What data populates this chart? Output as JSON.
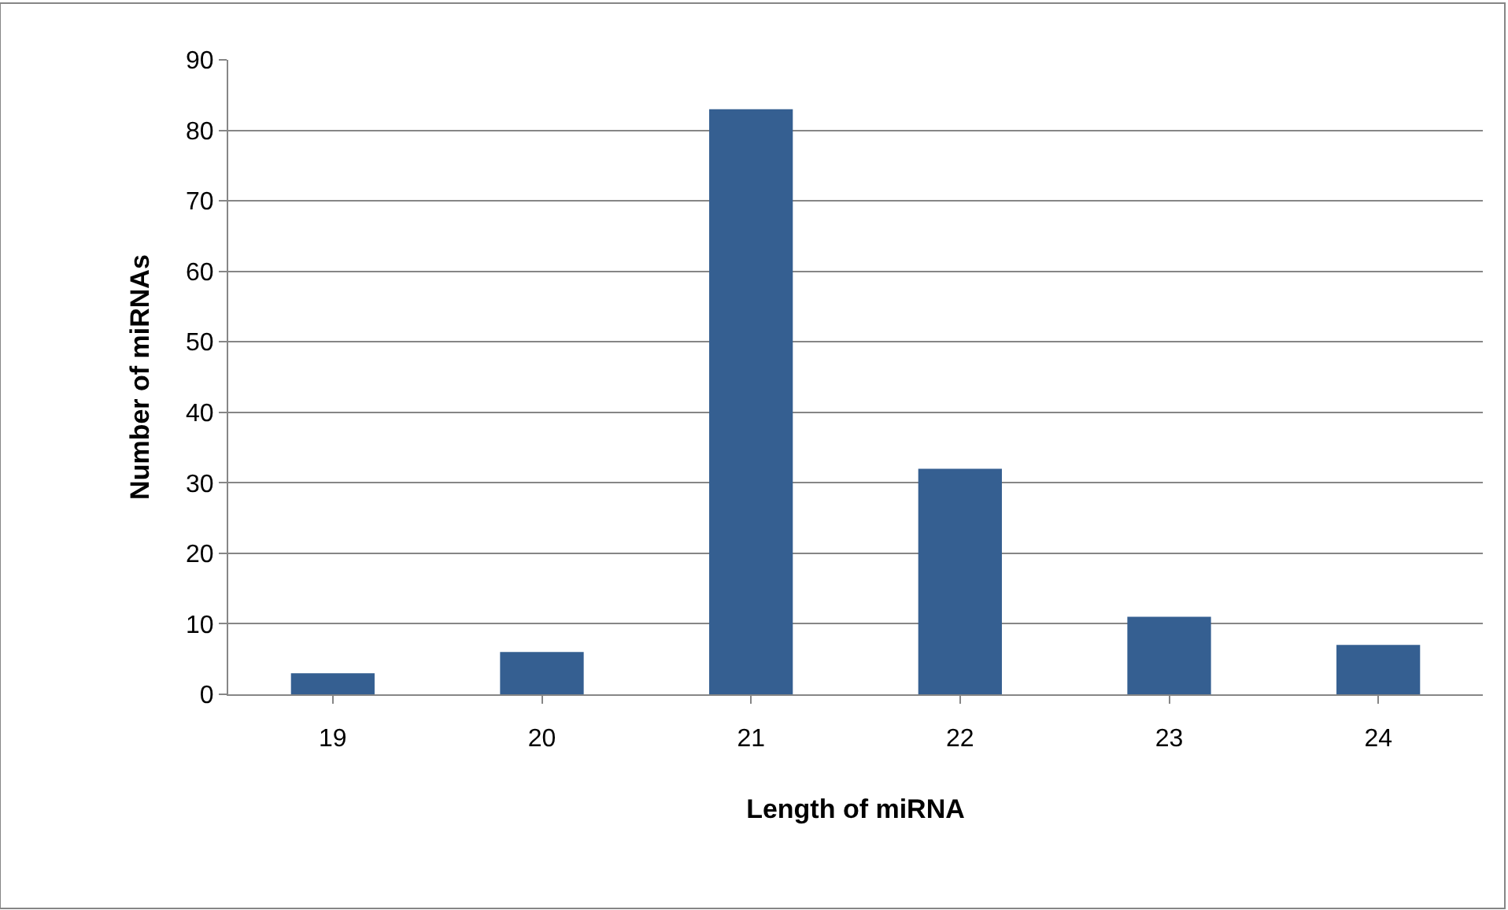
{
  "chart_data": {
    "type": "bar",
    "xlabel": "Length of miRNA",
    "ylabel": "Number of miRNAs",
    "categories": [
      "19",
      "20",
      "21",
      "22",
      "23",
      "24"
    ],
    "values": [
      3,
      6,
      83,
      32,
      11,
      7
    ],
    "color": "#355f91",
    "ylim": [
      0,
      90
    ],
    "yticks": [
      0,
      10,
      20,
      30,
      40,
      50,
      60,
      70,
      80,
      90
    ],
    "grid": "y"
  }
}
